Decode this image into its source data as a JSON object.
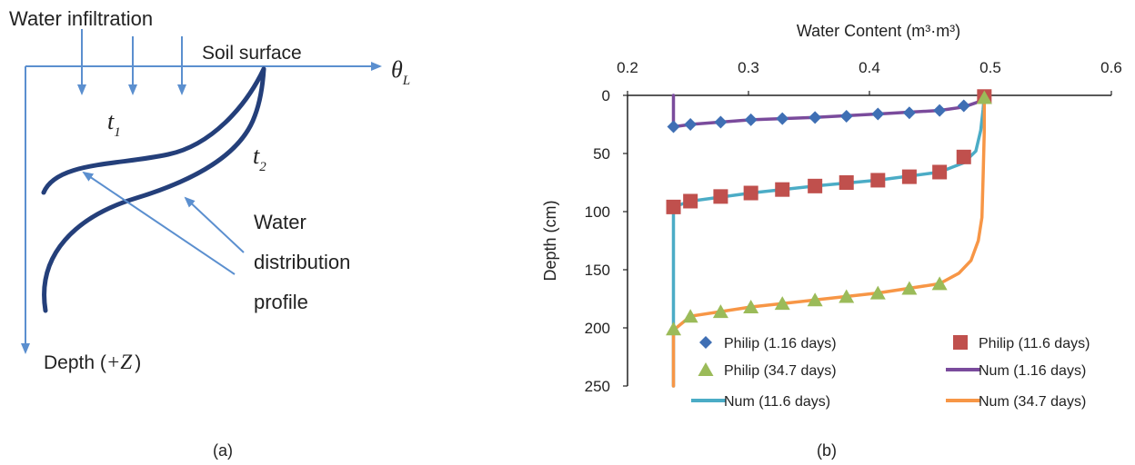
{
  "figure_a": {
    "caption": "(a)",
    "infiltration_label": "Water infiltration",
    "surface_label": "Soil surface",
    "theta_symbol": "θ",
    "theta_sub": "L",
    "t1_symbol": "t",
    "t1_sub": "1",
    "t2_symbol": "t",
    "t2_sub": "2",
    "depth_label_prefix": "Depth (",
    "depth_label_var": "+Z",
    "depth_label_suffix": ")",
    "profile_label_lines": [
      "Water",
      "distribution",
      "profile"
    ],
    "line_color": "#5b8fcf",
    "curve_color": "#243f7a"
  },
  "figure_b": {
    "caption": "(b)",
    "chart_data": {
      "type": "scatter",
      "title": "",
      "xlabel": "Water Content (m³·m³)",
      "ylabel": "Depth (cm)",
      "xlim": [
        0.2,
        0.6
      ],
      "ylim": [
        0,
        250
      ],
      "y_inverted": true,
      "x_axis_position": "top",
      "x_ticks": [
        "0.2",
        "0.3",
        "0.4",
        "0.5",
        "0.6"
      ],
      "y_ticks": [
        "0",
        "50",
        "100",
        "150",
        "200",
        "250"
      ],
      "grid": false,
      "legend_position": "bottom-right",
      "series": [
        {
          "name": "Philip (1.16 days)",
          "kind": "marker",
          "marker": "diamond",
          "color": "#3f6fb4",
          "points": [
            [
              0.238,
              27
            ],
            [
              0.252,
              25
            ],
            [
              0.277,
              23
            ],
            [
              0.302,
              21
            ],
            [
              0.328,
              20
            ],
            [
              0.355,
              19
            ],
            [
              0.381,
              18
            ],
            [
              0.407,
              16
            ],
            [
              0.433,
              15
            ],
            [
              0.458,
              13
            ],
            [
              0.478,
              9
            ]
          ]
        },
        {
          "name": "Philip (11.6 days)",
          "kind": "marker",
          "marker": "square",
          "color": "#c0504d",
          "points": [
            [
              0.238,
              96
            ],
            [
              0.252,
              91
            ],
            [
              0.277,
              87
            ],
            [
              0.302,
              84
            ],
            [
              0.328,
              81
            ],
            [
              0.355,
              78
            ],
            [
              0.381,
              75
            ],
            [
              0.407,
              73
            ],
            [
              0.433,
              70
            ],
            [
              0.458,
              66
            ],
            [
              0.478,
              53
            ],
            [
              0.495,
              1
            ]
          ]
        },
        {
          "name": "Philip (34.7 days)",
          "kind": "marker",
          "marker": "triangle",
          "color": "#9bbb59",
          "points": [
            [
              0.238,
              201
            ],
            [
              0.252,
              190
            ],
            [
              0.277,
              186
            ],
            [
              0.302,
              182
            ],
            [
              0.328,
              179
            ],
            [
              0.355,
              176
            ],
            [
              0.381,
              173
            ],
            [
              0.407,
              170
            ],
            [
              0.433,
              166
            ],
            [
              0.458,
              162
            ],
            [
              0.495,
              2
            ]
          ]
        },
        {
          "name": "Num (1.16 days)",
          "kind": "line",
          "color": "#7a4b9c",
          "points": [
            [
              0.238,
              0
            ],
            [
              0.238,
              27
            ],
            [
              0.252,
              25
            ],
            [
              0.302,
              21
            ],
            [
              0.355,
              19
            ],
            [
              0.407,
              16
            ],
            [
              0.458,
              13
            ],
            [
              0.478,
              10
            ],
            [
              0.489,
              6
            ],
            [
              0.494,
              2
            ],
            [
              0.495,
              0
            ]
          ]
        },
        {
          "name": "Num (11.6 days)",
          "kind": "line",
          "color": "#4bacc6",
          "points": [
            [
              0.238,
              250
            ],
            [
              0.238,
              96
            ],
            [
              0.252,
              91
            ],
            [
              0.302,
              84
            ],
            [
              0.355,
              78
            ],
            [
              0.407,
              73
            ],
            [
              0.458,
              66
            ],
            [
              0.478,
              58
            ],
            [
              0.488,
              48
            ],
            [
              0.492,
              30
            ],
            [
              0.494,
              12
            ],
            [
              0.495,
              0
            ]
          ]
        },
        {
          "name": "Num (34.7 days)",
          "kind": "line",
          "color": "#f79646",
          "points": [
            [
              0.238,
              250
            ],
            [
              0.238,
              202
            ],
            [
              0.252,
              190
            ],
            [
              0.302,
              182
            ],
            [
              0.355,
              176
            ],
            [
              0.407,
              170
            ],
            [
              0.458,
              162
            ],
            [
              0.474,
              153
            ],
            [
              0.484,
              142
            ],
            [
              0.49,
              125
            ],
            [
              0.493,
              105
            ],
            [
              0.494,
              70
            ],
            [
              0.495,
              30
            ],
            [
              0.495,
              0
            ]
          ]
        }
      ]
    }
  }
}
